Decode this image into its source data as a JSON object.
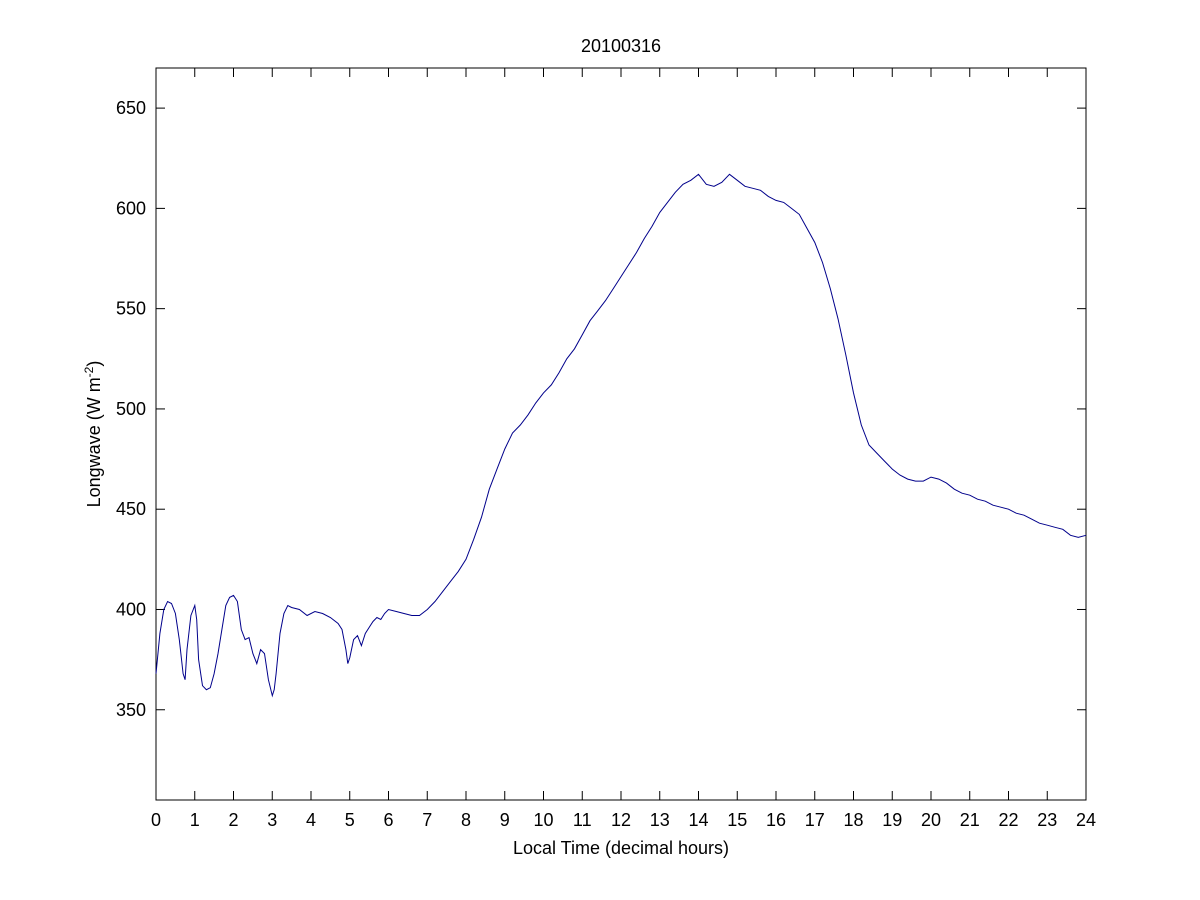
{
  "chart_data": {
    "type": "line",
    "title": "20100316",
    "xlabel": "Local Time (decimal hours)",
    "ylabel": "Longwave (W m",
    "ylabel_sup": "-2",
    "ylabel_end": ")",
    "xlim": [
      0,
      24
    ],
    "ylim": [
      305,
      670
    ],
    "xticks": [
      0,
      1,
      2,
      3,
      4,
      5,
      6,
      7,
      8,
      9,
      10,
      11,
      12,
      13,
      14,
      15,
      16,
      17,
      18,
      19,
      20,
      21,
      22,
      23,
      24
    ],
    "yticks": [
      350,
      400,
      450,
      500,
      550,
      600,
      650
    ],
    "grid": false,
    "line_color": "#00008b",
    "series": [
      {
        "x": [
          0,
          0.1,
          0.2,
          0.3,
          0.4,
          0.5,
          0.6,
          0.7,
          0.75,
          0.8,
          0.9,
          1.0,
          1.05,
          1.1,
          1.2,
          1.3,
          1.4,
          1.5,
          1.6,
          1.7,
          1.8,
          1.9,
          2.0,
          2.1,
          2.2,
          2.3,
          2.4,
          2.5,
          2.6,
          2.7,
          2.8,
          2.9,
          3.0,
          3.05,
          3.1,
          3.2,
          3.3,
          3.4,
          3.5,
          3.7,
          3.9,
          4.1,
          4.3,
          4.5,
          4.7,
          4.8,
          4.9,
          4.95,
          5.0,
          5.1,
          5.2,
          5.3,
          5.4,
          5.5,
          5.6,
          5.7,
          5.8,
          5.9,
          6.0,
          6.2,
          6.4,
          6.6,
          6.8,
          7.0,
          7.2,
          7.4,
          7.6,
          7.8,
          8.0,
          8.2,
          8.4,
          8.6,
          8.8,
          9.0,
          9.2,
          9.4,
          9.6,
          9.8,
          10.0,
          10.2,
          10.4,
          10.6,
          10.8,
          11.0,
          11.2,
          11.4,
          11.6,
          11.8,
          12.0,
          12.2,
          12.4,
          12.6,
          12.8,
          13.0,
          13.2,
          13.4,
          13.6,
          13.8,
          14.0,
          14.2,
          14.4,
          14.6,
          14.8,
          15.0,
          15.2,
          15.4,
          15.6,
          15.8,
          16.0,
          16.2,
          16.4,
          16.6,
          16.8,
          17.0,
          17.2,
          17.4,
          17.6,
          17.8,
          18.0,
          18.2,
          18.4,
          18.6,
          18.8,
          19.0,
          19.2,
          19.4,
          19.6,
          19.8,
          20.0,
          20.2,
          20.4,
          20.6,
          20.8,
          21.0,
          21.2,
          21.4,
          21.6,
          21.8,
          22.0,
          22.2,
          22.4,
          22.6,
          22.8,
          23.0,
          23.2,
          23.4,
          23.6,
          23.8,
          24.0
        ],
        "y": [
          368,
          388,
          400,
          404,
          403,
          398,
          385,
          368,
          365,
          380,
          397,
          402,
          395,
          375,
          362,
          360,
          361,
          368,
          378,
          390,
          402,
          406,
          407,
          404,
          390,
          385,
          386,
          378,
          373,
          380,
          378,
          365,
          357,
          360,
          368,
          388,
          398,
          402,
          401,
          400,
          397,
          399,
          398,
          396,
          393,
          390,
          380,
          373,
          376,
          385,
          387,
          382,
          388,
          391,
          394,
          396,
          395,
          398,
          400,
          399,
          398,
          397,
          397,
          400,
          404,
          409,
          414,
          419,
          425,
          435,
          446,
          460,
          470,
          480,
          488,
          492,
          497,
          503,
          508,
          512,
          518,
          525,
          530,
          537,
          544,
          549,
          554,
          560,
          566,
          572,
          578,
          585,
          591,
          598,
          603,
          608,
          612,
          614,
          617,
          612,
          611,
          613,
          617,
          614,
          611,
          610,
          609,
          606,
          604,
          603,
          600,
          597,
          590,
          583,
          573,
          560,
          545,
          527,
          508,
          492,
          482,
          478,
          474,
          470,
          467,
          465,
          464,
          464,
          466,
          465,
          463,
          460,
          458,
          457,
          455,
          454,
          452,
          451,
          450,
          448,
          447,
          445,
          443,
          442,
          441,
          440,
          437,
          436,
          437
        ]
      }
    ]
  }
}
